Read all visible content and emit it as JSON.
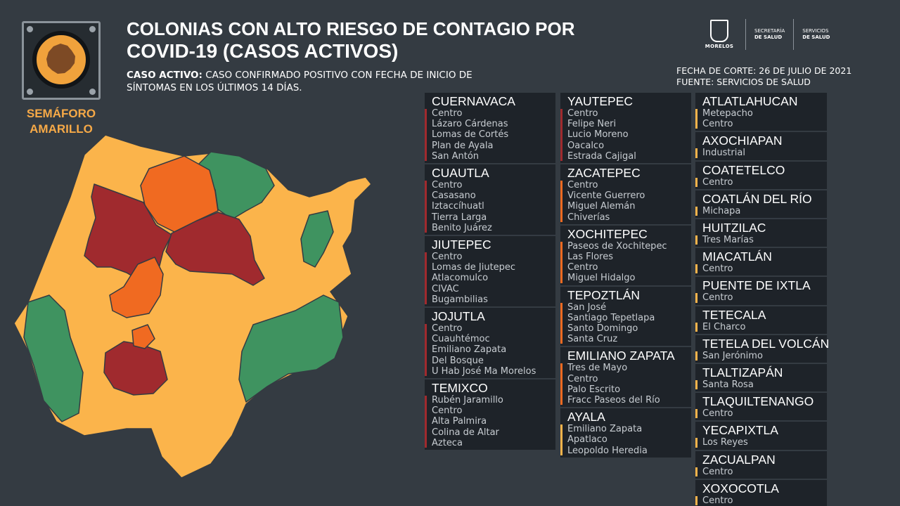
{
  "header": {
    "title_line1": "COLONIAS CON ALTO RIESGO DE CONTAGIO POR",
    "title_line2": "COVID-19 (CASOS ACTIVOS)",
    "definition_label": "CASO ACTIVO:",
    "definition_text": " CASO CONFIRMADO POSITIVO CON FECHA DE INICIO DE SÍNTOMAS EN LOS ÚLTIMOS 14 DÍAS.",
    "cutoff_date": "FECHA DE CORTE: 26 DE JULIO DE 2021",
    "source": "FUENTE: SERVICIOS DE SALUD"
  },
  "semaforo": {
    "line1": "SEMÁFORO",
    "line2": "AMARILLO",
    "color": "#f6a947"
  },
  "logos": {
    "morelos": "MORELOS",
    "secretaria_line1": "SECRETARÍA",
    "secretaria_line2": "DE SALUD",
    "servicios_line1": "SERVICIOS",
    "servicios_line2": "DE SALUD"
  },
  "risk_colors": {
    "red": "#a02a2e",
    "orange": "#f06a21",
    "yellow": "#fbb44b",
    "green": "#3f9360"
  },
  "municipalities": [
    {
      "name": "CUERNAVACA",
      "risk": "red",
      "colonias": [
        "Centro",
        "Lázaro Cárdenas",
        "Lomas de Cortés",
        "Plan de Ayala",
        "San Antón"
      ]
    },
    {
      "name": "CUAUTLA",
      "risk": "red",
      "colonias": [
        "Centro",
        "Casasano",
        "Iztaccíhuatl",
        "Tierra Larga",
        "Benito Juárez"
      ]
    },
    {
      "name": "JIUTEPEC",
      "risk": "red",
      "colonias": [
        "Centro",
        "Lomas de Jiutepec",
        "Atlacomulco",
        "CIVAC",
        "Bugambilias"
      ]
    },
    {
      "name": "JOJUTLA",
      "risk": "red",
      "colonias": [
        "Centro",
        "Cuauhtémoc",
        "Emiliano Zapata",
        "Del Bosque",
        "U Hab José Ma Morelos"
      ]
    },
    {
      "name": "TEMIXCO",
      "risk": "red",
      "colonias": [
        "Rubén Jaramillo",
        "Centro",
        "Alta Palmira",
        "Colina de Altar",
        "Azteca"
      ]
    },
    {
      "name": "YAUTEPEC",
      "risk": "red",
      "colonias": [
        "Centro",
        "Felipe Neri",
        "Lucio Moreno",
        "Oacalco",
        "Estrada Cajigal"
      ]
    },
    {
      "name": "ZACATEPEC",
      "risk": "orange",
      "colonias": [
        "Centro",
        "Vicente Guerrero",
        "Miguel Alemán",
        "Chiverías"
      ]
    },
    {
      "name": "XOCHITEPEC",
      "risk": "orange",
      "colonias": [
        "Paseos de Xochitepec",
        "Las Flores",
        "Centro",
        "Miguel Hidalgo"
      ]
    },
    {
      "name": "TEPOZTLÁN",
      "risk": "orange",
      "colonias": [
        "San José",
        "Santiago Tepetlapa",
        "Santo Domingo",
        "Santa Cruz"
      ]
    },
    {
      "name": "EMILIANO ZAPATA",
      "risk": "orange",
      "colonias": [
        "Tres de Mayo",
        "Centro",
        "Palo Escrito",
        "Fracc Paseos del Río"
      ]
    },
    {
      "name": "AYALA",
      "risk": "yellow",
      "colonias": [
        "Emiliano Zapata",
        "Apatlaco",
        "Leopoldo Heredia"
      ]
    },
    {
      "name": "ATLATLAHUCAN",
      "risk": "yellow",
      "colonias": [
        "Metepacho",
        "Centro"
      ]
    },
    {
      "name": "AXOCHIAPAN",
      "risk": "yellow",
      "colonias": [
        "Industrial"
      ]
    },
    {
      "name": "COATETELCO",
      "risk": "yellow",
      "colonias": [
        "Centro"
      ]
    },
    {
      "name": "COATLÁN DEL RÍO",
      "risk": "yellow",
      "colonias": [
        "Michapa"
      ]
    },
    {
      "name": "HUITZILAC",
      "risk": "yellow",
      "colonias": [
        "Tres Marías"
      ]
    },
    {
      "name": "MIACATLÁN",
      "risk": "yellow",
      "colonias": [
        "Centro"
      ]
    },
    {
      "name": "PUENTE DE IXTLA",
      "risk": "yellow",
      "colonias": [
        "Centro"
      ]
    },
    {
      "name": "TETECALA",
      "risk": "yellow",
      "colonias": [
        "El Charco"
      ]
    },
    {
      "name": "TETELA DEL VOLCÁN",
      "risk": "yellow",
      "colonias": [
        "San Jerónimo"
      ]
    },
    {
      "name": "TLALTIZAPÁN",
      "risk": "yellow",
      "colonias": [
        "Santa Rosa"
      ]
    },
    {
      "name": "TLAQUILTENANGO",
      "risk": "yellow",
      "colonias": [
        "Centro"
      ]
    },
    {
      "name": "YECAPIXTLA",
      "risk": "yellow",
      "colonias": [
        "Los Reyes"
      ]
    },
    {
      "name": "ZACUALPAN",
      "risk": "yellow",
      "colonias": [
        "Centro"
      ]
    },
    {
      "name": "XOXOCOTLA",
      "risk": "yellow",
      "colonias": [
        "Centro"
      ]
    }
  ]
}
